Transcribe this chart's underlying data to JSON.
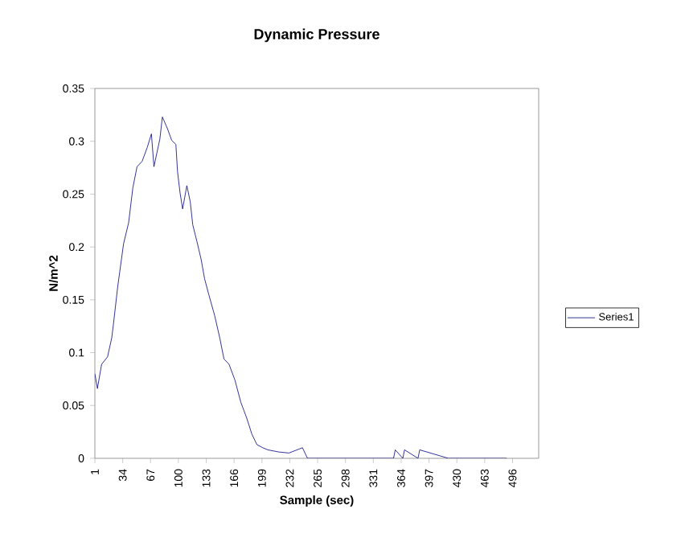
{
  "chart_data": {
    "type": "line",
    "title": "Dynamic Pressure",
    "xlabel": "Sample (sec)",
    "ylabel": "N/m^2",
    "xlim": [
      1,
      527
    ],
    "xticks": [
      1,
      34,
      67,
      100,
      133,
      166,
      199,
      232,
      265,
      298,
      331,
      364,
      397,
      430,
      463,
      496
    ],
    "ylim": [
      0,
      0.35
    ],
    "yticks": [
      0,
      0.05,
      0.1,
      0.15,
      0.2,
      0.25,
      0.3,
      0.35
    ],
    "legend": "right",
    "marker": "none",
    "line_style": "solid",
    "grid": false,
    "series": [
      {
        "name": "Series1",
        "color": "#000080",
        "x": [
          1,
          4,
          9,
          16,
          21,
          23,
          28,
          35,
          41,
          46,
          51,
          57,
          63,
          68,
          71,
          78,
          81,
          87,
          92,
          97,
          99,
          102,
          105,
          110,
          114,
          117,
          122,
          127,
          131,
          136,
          143,
          149,
          154,
          160,
          167,
          174,
          181,
          187,
          193,
          200,
          206,
          219,
          231,
          247,
          253,
          300,
          355,
          357,
          366,
          368,
          384,
          386,
          420,
          489
        ],
        "values": [
          0.08,
          0.066,
          0.089,
          0.096,
          0.114,
          0.127,
          0.162,
          0.203,
          0.223,
          0.256,
          0.276,
          0.281,
          0.294,
          0.307,
          0.276,
          0.302,
          0.323,
          0.312,
          0.301,
          0.297,
          0.271,
          0.251,
          0.236,
          0.258,
          0.243,
          0.221,
          0.205,
          0.188,
          0.17,
          0.155,
          0.135,
          0.114,
          0.094,
          0.089,
          0.074,
          0.053,
          0.038,
          0.023,
          0.013,
          0.01,
          0.008,
          0.006,
          0.005,
          0.01,
          0,
          0,
          0,
          0.008,
          0,
          0.008,
          0,
          0.008,
          0,
          0
        ]
      }
    ]
  }
}
